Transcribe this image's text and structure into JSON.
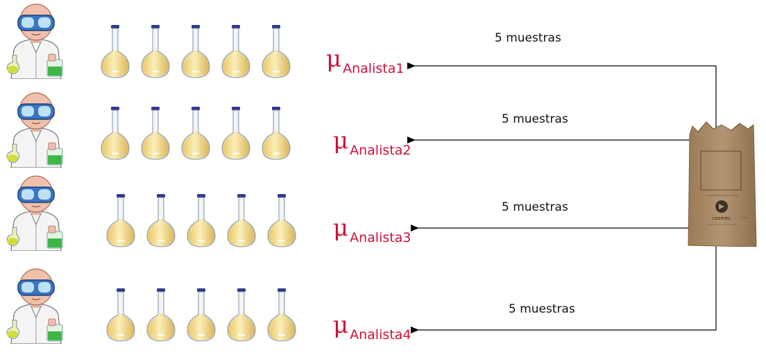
{
  "rows": [
    {
      "mu_symbol": "μ",
      "mu_subscript": "Analista1",
      "samples_label": "5 muestras"
    },
    {
      "mu_symbol": "μ",
      "mu_subscript": "Analista2",
      "samples_label": "5 muestras"
    },
    {
      "mu_symbol": "μ",
      "mu_subscript": "Analista3",
      "samples_label": "5 muestras"
    },
    {
      "mu_symbol": "μ",
      "mu_subscript": "Analista4",
      "samples_label": "5 muestras"
    }
  ],
  "bag": {
    "logo_text": "cesmec"
  },
  "colors": {
    "mu_text": "#d0103a",
    "arrow": "#000000",
    "flask_liquid": "#f1d98a",
    "goggles": "#3a74c4",
    "bag": "#a98a64"
  },
  "icons": {
    "analyst": "scientist-icon",
    "flask": "volumetric-flask-icon",
    "bag": "paper-bag-icon"
  }
}
